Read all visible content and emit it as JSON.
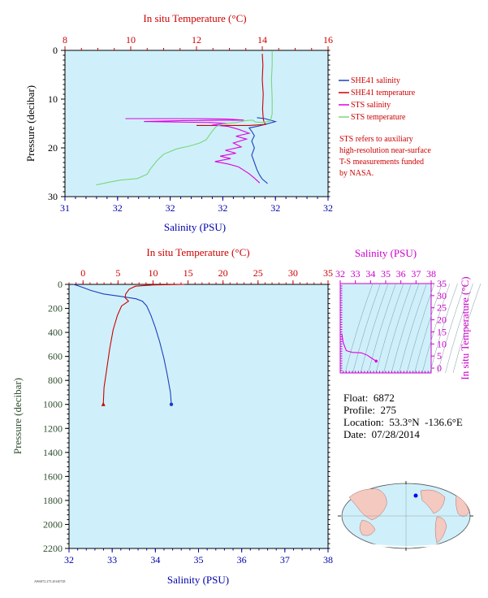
{
  "chart_data": [
    {
      "type": "line",
      "name": "top-profile",
      "top_axis": {
        "label": "In situ Temperature (°C)",
        "ticks": [
          "8",
          "10",
          "12",
          "14",
          "16"
        ],
        "range": [
          8,
          16
        ],
        "color": "#cc0000"
      },
      "bottom_axis": {
        "label": "Salinity (PSU)",
        "ticks": [
          "31",
          "32",
          "32",
          "32",
          "32",
          "32"
        ],
        "range": [
          31,
          32
        ],
        "color": "#0000aa"
      },
      "left_axis": {
        "label": "Pressure (decibar)",
        "ticks": [
          "0",
          "10",
          "20",
          "30"
        ],
        "range": [
          0,
          30
        ],
        "inverted": true,
        "color": "#000000"
      },
      "grid": false,
      "legend_placement": "right",
      "series": [
        {
          "name": "SHE41 salinity",
          "color": "#1f3fbf",
          "points": [
            [
              31.73,
              13.8
            ],
            [
              31.76,
              14.0
            ],
            [
              31.8,
              14.6
            ],
            [
              31.76,
              15.2
            ],
            [
              31.73,
              15.6
            ],
            [
              31.7,
              15.9
            ],
            [
              31.71,
              16.6
            ],
            [
              31.72,
              17.5
            ],
            [
              31.71,
              18.6
            ],
            [
              31.72,
              20.0
            ],
            [
              31.71,
              21.5
            ],
            [
              31.72,
              23.0
            ],
            [
              31.73,
              24.5
            ],
            [
              31.74,
              25.6
            ],
            [
              31.75,
              26.4
            ],
            [
              31.77,
              27.3
            ]
          ]
        },
        {
          "name": "SHE41 temperature",
          "color": "#cc0000",
          "points": [
            [
              14.0,
              0.7
            ],
            [
              14.02,
              3
            ],
            [
              14.0,
              6
            ],
            [
              14.03,
              9
            ],
            [
              14.01,
              12
            ],
            [
              14.03,
              14
            ],
            [
              14.05,
              14.6
            ],
            [
              14.1,
              15.2
            ],
            [
              13.6,
              15.4
            ],
            [
              12.0,
              15.4
            ]
          ]
        },
        {
          "name": "STS salinity",
          "color": "#e000e0",
          "points": [
            [
              31.23,
              14.0
            ],
            [
              31.5,
              14.0
            ],
            [
              31.62,
              14.1
            ],
            [
              31.68,
              14.3
            ],
            [
              31.45,
              14.4
            ],
            [
              31.3,
              14.6
            ],
            [
              31.55,
              14.8
            ],
            [
              31.62,
              15.0
            ],
            [
              31.56,
              15.3
            ],
            [
              31.62,
              15.6
            ],
            [
              31.66,
              16.2
            ],
            [
              31.7,
              17.0
            ],
            [
              31.65,
              17.6
            ],
            [
              31.69,
              18.2
            ],
            [
              31.64,
              19.0
            ],
            [
              31.67,
              19.8
            ],
            [
              31.61,
              20.5
            ],
            [
              31.65,
              21.1
            ],
            [
              31.59,
              21.7
            ],
            [
              31.63,
              22.2
            ],
            [
              31.57,
              22.8
            ],
            [
              31.62,
              23.3
            ],
            [
              31.66,
              23.9
            ],
            [
              31.68,
              24.6
            ],
            [
              31.7,
              25.3
            ],
            [
              31.72,
              26.2
            ],
            [
              31.74,
              27.2
            ]
          ]
        },
        {
          "name": "STS temperature",
          "color": "#7bd67b",
          "points": [
            [
              8.95,
              27.6
            ],
            [
              9.3,
              27.1
            ],
            [
              9.7,
              26.6
            ],
            [
              10.2,
              26.3
            ],
            [
              10.5,
              25.4
            ],
            [
              10.6,
              24.3
            ],
            [
              10.8,
              22.6
            ],
            [
              11.0,
              21.3
            ],
            [
              11.4,
              20.2
            ],
            [
              11.8,
              19.6
            ],
            [
              12.1,
              19.0
            ],
            [
              12.3,
              18.3
            ],
            [
              12.4,
              17.3
            ],
            [
              12.5,
              16.4
            ],
            [
              12.6,
              15.6
            ],
            [
              12.8,
              15.1
            ],
            [
              13.2,
              14.8
            ],
            [
              13.5,
              14.4
            ],
            [
              13.7,
              14.3
            ],
            [
              13.8,
              14.7
            ],
            [
              14.0,
              14.8
            ],
            [
              14.25,
              14.5
            ],
            [
              14.3,
              13.0
            ],
            [
              14.3,
              10
            ],
            [
              14.28,
              6
            ],
            [
              14.3,
              3
            ],
            [
              14.3,
              0.2
            ]
          ]
        }
      ],
      "annotation": "STS refers to auxiliary high-resolution near-surface T-S measurements funded by NASA."
    },
    {
      "type": "line",
      "name": "full-profile",
      "top_axis": {
        "label": "In situ Temperature (°C)",
        "ticks": [
          "0",
          "5",
          "10",
          "15",
          "20",
          "25",
          "30",
          "35"
        ],
        "range": [
          -2,
          35
        ],
        "color": "#cc0000"
      },
      "bottom_axis": {
        "label": "Salinity (PSU)",
        "ticks": [
          "32",
          "33",
          "34",
          "35",
          "36",
          "37",
          "38"
        ],
        "range": [
          32,
          38
        ],
        "color": "#0000aa"
      },
      "left_axis": {
        "label": "Pressure (decibar)",
        "ticks": [
          "0",
          "200",
          "400",
          "600",
          "800",
          "1000",
          "1200",
          "1400",
          "1600",
          "1800",
          "2000",
          "2200"
        ],
        "range": [
          0,
          2200
        ],
        "inverted": true,
        "color": "#2e4d2e"
      },
      "series": [
        {
          "name": "salinity",
          "color": "#1f3fbf",
          "points": [
            [
              32.1,
              0
            ],
            [
              32.2,
              10
            ],
            [
              32.35,
              30
            ],
            [
              32.5,
              50
            ],
            [
              32.8,
              80
            ],
            [
              33.2,
              100
            ],
            [
              33.55,
              120
            ],
            [
              33.7,
              140
            ],
            [
              33.8,
              180
            ],
            [
              33.9,
              260
            ],
            [
              34.0,
              360
            ],
            [
              34.1,
              480
            ],
            [
              34.2,
              620
            ],
            [
              34.28,
              760
            ],
            [
              34.35,
              900
            ],
            [
              34.37,
              1000
            ]
          ]
        },
        {
          "name": "temperature",
          "color": "#cc0000",
          "points": [
            [
              14.5,
              0
            ],
            [
              10.0,
              5
            ],
            [
              7.5,
              15
            ],
            [
              6.6,
              40
            ],
            [
              6.1,
              80
            ],
            [
              6.0,
              110
            ],
            [
              6.5,
              140
            ],
            [
              5.5,
              180
            ],
            [
              4.9,
              260
            ],
            [
              4.3,
              380
            ],
            [
              3.8,
              540
            ],
            [
              3.4,
              700
            ],
            [
              3.0,
              860
            ],
            [
              2.9,
              1000
            ]
          ]
        }
      ]
    },
    {
      "type": "line",
      "name": "ts-diagram",
      "top_axis": {
        "label": "Salinity (PSU)",
        "ticks": [
          "32",
          "33",
          "34",
          "35",
          "36",
          "37",
          "38"
        ],
        "range": [
          32,
          38
        ],
        "color": "#cc00cc"
      },
      "right_axis": {
        "label": "In situ Temperature (°C)",
        "ticks": [
          "0",
          "5",
          "10",
          "15",
          "20",
          "25",
          "30",
          "35"
        ],
        "range": [
          -2,
          35
        ],
        "color": "#cc00cc"
      },
      "grid": false,
      "series": [
        {
          "name": "profile",
          "color": "#e000e0",
          "points": [
            [
              32.1,
              14.3
            ],
            [
              32.2,
              10.5
            ],
            [
              32.4,
              7.2
            ],
            [
              32.8,
              6.5
            ],
            [
              33.4,
              6.3
            ],
            [
              33.8,
              5.3
            ],
            [
              34.0,
              4.4
            ],
            [
              34.2,
              3.6
            ],
            [
              34.37,
              2.9
            ]
          ]
        }
      ]
    }
  ],
  "legend": [
    {
      "label": "SHE41 salinity",
      "color": "#1f3fbf"
    },
    {
      "label": "SHE41 temperature",
      "color": "#cc0000"
    },
    {
      "label": "STS salinity",
      "color": "#e000e0"
    },
    {
      "label": "STS temperature",
      "color": "#7bd67b"
    }
  ],
  "note": {
    "lines": [
      "STS refers to auxiliary",
      "high-resolution near-surface",
      "T-S measurements funded",
      "by NASA."
    ]
  },
  "info": {
    "float": "Float:  6872",
    "profile": "Profile:  275",
    "location": "Location:  53.3°N  -136.6°E",
    "date": "Date:  07/28/2014"
  },
  "footer_text": "AW6872.275.20140728",
  "colors": {
    "plot_bg": "#cff0fa",
    "temp": "#cc0000",
    "sal": "#0000aa",
    "ts": "#cc00cc",
    "pressure_lower": "#2e4d2e"
  }
}
